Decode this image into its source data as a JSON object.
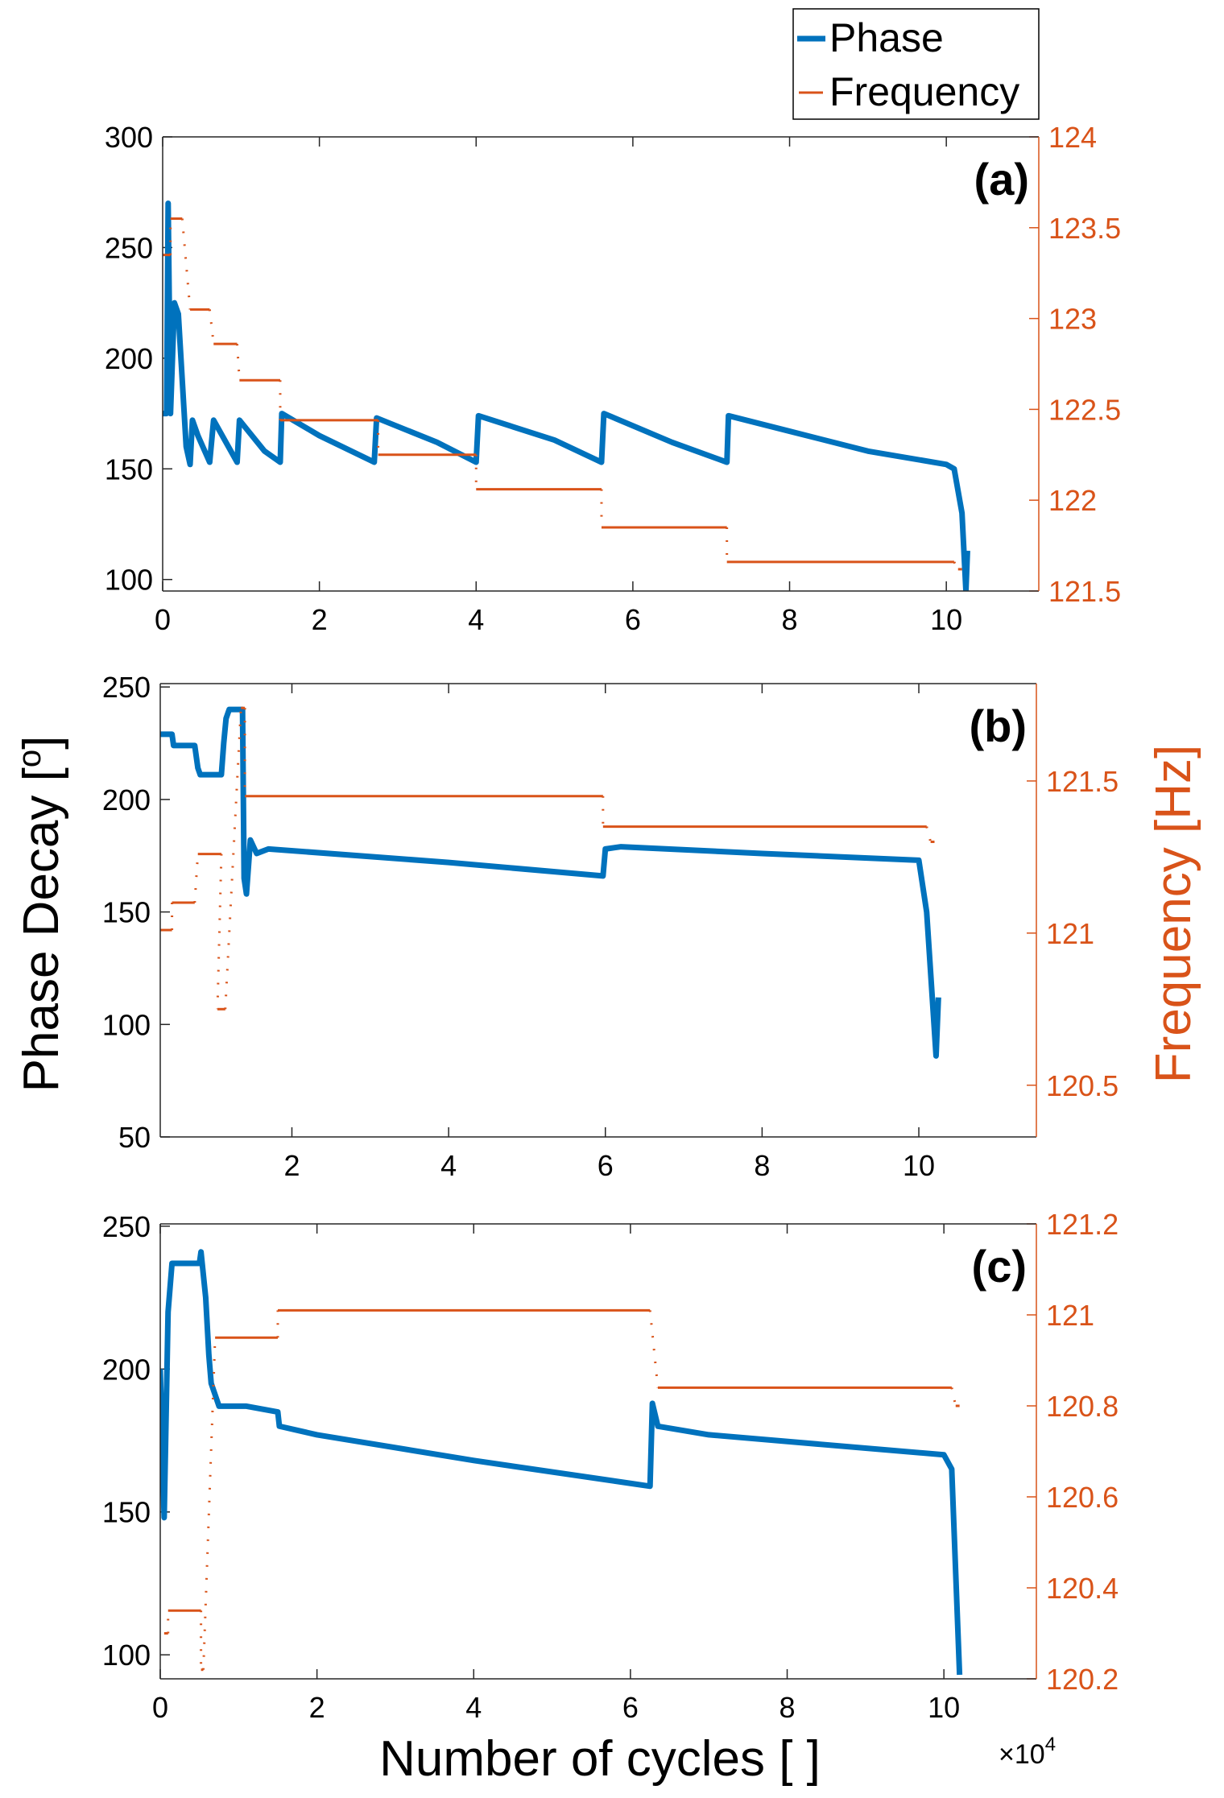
{
  "legend": {
    "phase": "Phase",
    "frequency": "Frequency"
  },
  "ylabel": {
    "main": "Phase Decay [",
    "sup": "o",
    "end": "]"
  },
  "ylabel_right": "Frequency [Hz]",
  "xlabel": "Number of cycles [ ]",
  "x_multiplier": {
    "base": "×10",
    "exp": "4"
  },
  "colors": {
    "phase": "#0072BD",
    "frequency": "#D95319",
    "axis": "#000000"
  },
  "chart_data": [
    {
      "type": "line",
      "panel_label": "(a)",
      "xlim": [
        0,
        11.18
      ],
      "ylim": [
        94.8,
        300
      ],
      "ylim_right": [
        121.5,
        124
      ],
      "x_ticks": [
        0,
        2,
        4,
        6,
        8,
        10
      ],
      "y_ticks": [
        100,
        150,
        200,
        250,
        300
      ],
      "y_ticks_right": [
        121.5,
        122,
        122.5,
        123,
        123.5,
        124
      ],
      "series": [
        {
          "name": "Phase",
          "axis": "left",
          "points": [
            [
              0,
              175
            ],
            [
              0.05,
              175
            ],
            [
              0.07,
              270
            ],
            [
              0.1,
              175
            ],
            [
              0.15,
              225
            ],
            [
              0.2,
              220
            ],
            [
              0.3,
              160
            ],
            [
              0.35,
              152
            ],
            [
              0.38,
              172
            ],
            [
              0.45,
              165
            ],
            [
              0.6,
              153
            ],
            [
              0.65,
              172
            ],
            [
              0.95,
              153
            ],
            [
              0.98,
              172
            ],
            [
              1.3,
              158
            ],
            [
              1.5,
              153
            ],
            [
              1.52,
              175
            ],
            [
              2,
              165
            ],
            [
              2.7,
              153
            ],
            [
              2.73,
              173
            ],
            [
              3.5,
              162
            ],
            [
              4,
              153
            ],
            [
              4.03,
              174
            ],
            [
              5,
              163
            ],
            [
              5.6,
              153
            ],
            [
              5.63,
              175
            ],
            [
              6.5,
              162
            ],
            [
              7.2,
              153
            ],
            [
              7.22,
              174
            ],
            [
              8,
              167
            ],
            [
              9,
              158
            ],
            [
              10,
              152
            ],
            [
              10.1,
              150
            ],
            [
              10.2,
              130
            ],
            [
              10.25,
              95
            ],
            [
              10.27,
              113
            ]
          ]
        },
        {
          "name": "Frequency",
          "axis": "right",
          "levels": [
            [
              0,
              0.1,
              123.35
            ],
            [
              0.1,
              0.25,
              123.55
            ],
            [
              0.35,
              0.6,
              123.05
            ],
            [
              0.65,
              0.95,
              122.86
            ],
            [
              0.98,
              1.5,
              122.66
            ],
            [
              1.5,
              2.75,
              122.44
            ],
            [
              2.75,
              4.0,
              122.25
            ],
            [
              4.0,
              5.6,
              122.06
            ],
            [
              5.6,
              7.2,
              121.85
            ],
            [
              7.2,
              10.1,
              121.66
            ],
            [
              10.15,
              10.2,
              121.62
            ]
          ]
        }
      ]
    },
    {
      "type": "line",
      "panel_label": "(b)",
      "xlim": [
        0.32,
        11.5
      ],
      "ylim": [
        50,
        251.5
      ],
      "ylim_right": [
        120.33,
        121.82
      ],
      "x_ticks": [
        2,
        4,
        6,
        8,
        10
      ],
      "y_ticks": [
        50,
        100,
        150,
        200,
        250
      ],
      "y_ticks_right": [
        120.5,
        121,
        121.5
      ],
      "series": [
        {
          "name": "Phase",
          "axis": "left",
          "points": [
            [
              0.32,
              229
            ],
            [
              0.47,
              229
            ],
            [
              0.49,
              224
            ],
            [
              0.76,
              224
            ],
            [
              0.8,
              214
            ],
            [
              0.83,
              211
            ],
            [
              1.1,
              211
            ],
            [
              1.13,
              225
            ],
            [
              1.16,
              236
            ],
            [
              1.2,
              240
            ],
            [
              1.37,
              240
            ],
            [
              1.39,
              165
            ],
            [
              1.42,
              158
            ],
            [
              1.47,
              182
            ],
            [
              1.55,
              176
            ],
            [
              1.7,
              178
            ],
            [
              4,
              172
            ],
            [
              5.97,
              166
            ],
            [
              6.0,
              178
            ],
            [
              6.2,
              179
            ],
            [
              8,
              176
            ],
            [
              10.0,
              173
            ],
            [
              10.1,
              150
            ],
            [
              10.22,
              86
            ],
            [
              10.25,
              112
            ]
          ]
        },
        {
          "name": "Frequency",
          "axis": "right",
          "levels": [
            [
              0.32,
              0.47,
              121.01
            ],
            [
              0.47,
              0.76,
              121.1
            ],
            [
              0.8,
              1.1,
              121.26
            ],
            [
              1.05,
              1.15,
              120.75
            ],
            [
              1.35,
              1.4,
              121.74
            ],
            [
              1.4,
              5.97,
              121.45
            ],
            [
              5.97,
              10.1,
              121.35
            ],
            [
              10.15,
              10.2,
              121.3
            ]
          ]
        }
      ]
    },
    {
      "type": "line",
      "panel_label": "(c)",
      "xlim": [
        0,
        11.18
      ],
      "ylim": [
        91.6,
        250.8
      ],
      "ylim_right": [
        120.2,
        121.2
      ],
      "x_ticks": [
        0,
        2,
        4,
        6,
        8,
        10
      ],
      "y_ticks": [
        100,
        150,
        200,
        250
      ],
      "y_ticks_right": [
        120.2,
        120.4,
        120.6,
        120.8,
        121,
        121.2
      ],
      "series": [
        {
          "name": "Phase",
          "axis": "left",
          "points": [
            [
              0,
              200
            ],
            [
              0.05,
              148
            ],
            [
              0.1,
              220
            ],
            [
              0.15,
              237
            ],
            [
              0.5,
              237
            ],
            [
              0.52,
              241
            ],
            [
              0.58,
              225
            ],
            [
              0.62,
              205
            ],
            [
              0.65,
              195
            ],
            [
              0.75,
              187
            ],
            [
              1.1,
              187
            ],
            [
              1.5,
              185
            ],
            [
              1.52,
              180
            ],
            [
              2,
              177
            ],
            [
              4,
              168
            ],
            [
              6,
              160
            ],
            [
              6.25,
              159
            ],
            [
              6.28,
              188
            ],
            [
              6.35,
              180
            ],
            [
              7,
              177
            ],
            [
              10,
              170
            ],
            [
              10.1,
              165
            ],
            [
              10.2,
              93
            ]
          ]
        },
        {
          "name": "Frequency",
          "axis": "right",
          "levels": [
            [
              0.05,
              0.1,
              120.3
            ],
            [
              0.1,
              0.52,
              120.35
            ],
            [
              0.52,
              0.55,
              120.22
            ],
            [
              0.7,
              1.5,
              120.95
            ],
            [
              1.5,
              6.25,
              121.01
            ],
            [
              6.35,
              10.1,
              120.84
            ],
            [
              10.15,
              10.2,
              120.8
            ]
          ]
        }
      ]
    }
  ]
}
